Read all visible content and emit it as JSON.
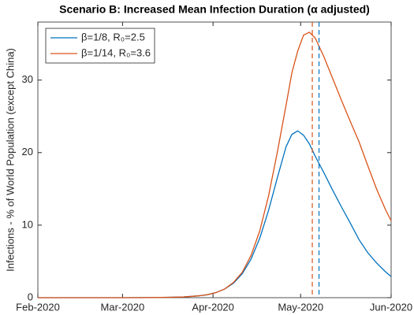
{
  "chart_data": {
    "type": "line",
    "title": "Scenario B: Increased Mean Infection Duration (α adjusted)",
    "y_label": "Infections - % of World Population (except China)",
    "x": [
      0,
      10,
      20,
      30,
      40,
      45,
      50,
      55,
      58,
      61,
      64,
      67,
      70,
      73,
      76,
      79,
      82,
      85,
      87,
      89,
      91,
      93,
      95,
      98,
      101,
      104,
      107,
      110,
      113,
      116,
      119,
      121
    ],
    "series": [
      {
        "name": "β=1/8, R₀=2.5",
        "color": "#0072BD",
        "values": [
          0,
          0,
          0,
          0,
          0.02,
          0.05,
          0.1,
          0.25,
          0.4,
          0.7,
          1.2,
          2.0,
          3.3,
          5.3,
          8.2,
          12,
          16.5,
          20.8,
          22.5,
          23,
          22.4,
          21.2,
          19.5,
          17.2,
          14.8,
          12.5,
          10.3,
          8.0,
          6.2,
          4.8,
          3.6,
          2.9
        ]
      },
      {
        "name": "β=1/14, R₀=3.6",
        "color": "#D95319",
        "values": [
          0,
          0,
          0,
          0,
          0.02,
          0.05,
          0.1,
          0.25,
          0.4,
          0.7,
          1.2,
          2.1,
          3.5,
          5.8,
          9.2,
          14,
          20,
          26.5,
          31,
          34,
          36.2,
          36.6,
          35.8,
          33.2,
          30.2,
          27.2,
          24.3,
          21.5,
          18.2,
          15,
          12.2,
          10.6
        ]
      }
    ],
    "vlines": [
      {
        "x": 96.3,
        "color": "#0072BD"
      },
      {
        "x": 94,
        "color": "#D95319"
      }
    ],
    "xlim": [
      0,
      121
    ],
    "xticks": [
      {
        "value": 0,
        "label": "Feb-2020"
      },
      {
        "value": 29,
        "label": "Mar-2020"
      },
      {
        "value": 60,
        "label": "Apr-2020"
      },
      {
        "value": 90,
        "label": "May-2020"
      },
      {
        "value": 121,
        "label": "Jun-2020"
      }
    ],
    "ylim": [
      0,
      38
    ],
    "yticks": [
      0,
      10,
      20,
      30
    ],
    "grid": false,
    "legend": "upper left"
  }
}
